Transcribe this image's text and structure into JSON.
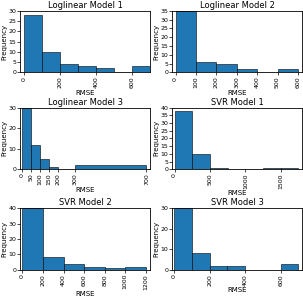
{
  "chart_data": [
    {
      "type": "histogram",
      "title": "Loglinear Model 1",
      "xlabel": "RMSE",
      "ylabel": "Frequency",
      "bins": [
        0,
        100,
        200,
        300,
        400,
        500,
        600,
        700
      ],
      "counts": [
        28,
        10,
        4,
        3,
        2,
        0,
        3
      ],
      "xlim": [
        -20,
        700
      ],
      "ylim": [
        0,
        30
      ],
      "xticks": [
        0,
        200,
        400,
        600
      ],
      "yticks": [
        0,
        5,
        10,
        15,
        20,
        25,
        30
      ]
    },
    {
      "type": "histogram",
      "title": "Loglinear Model 2",
      "xlabel": "RMSE",
      "ylabel": "Frequency",
      "bins": [
        0,
        100,
        200,
        300,
        400,
        500,
        600
      ],
      "counts": [
        35,
        6,
        5,
        2,
        0,
        2
      ],
      "xlim": [
        -15,
        620
      ],
      "ylim": [
        0,
        35
      ],
      "xticks": [
        0,
        100,
        200,
        300,
        400,
        500,
        600
      ],
      "yticks": [
        0,
        5,
        10,
        15,
        20,
        25,
        30,
        35
      ]
    },
    {
      "type": "histogram",
      "title": "Loglinear Model 3",
      "xlabel": "RMSE",
      "ylabel": "Frequency",
      "bins": [
        0,
        50,
        100,
        150,
        200,
        300,
        700
      ],
      "counts": [
        30,
        12,
        5,
        1,
        0,
        2
      ],
      "xlim": [
        -10,
        720
      ],
      "ylim": [
        0,
        30
      ],
      "xticks": [
        0,
        50,
        100,
        150,
        200,
        300,
        700
      ],
      "yticks": [
        0,
        10,
        20,
        30
      ]
    },
    {
      "type": "histogram",
      "title": "SVR Model 1",
      "xlabel": "RMSE",
      "ylabel": "Frequency",
      "bins": [
        0,
        250,
        500,
        750,
        1000,
        1250,
        1500,
        1750
      ],
      "counts": [
        38,
        10,
        1,
        0,
        0,
        1,
        1
      ],
      "xlim": [
        -30,
        1800
      ],
      "ylim": [
        0,
        40
      ],
      "xticks": [
        0,
        500,
        1000,
        1500
      ],
      "yticks": [
        0,
        5,
        10,
        15,
        20,
        25,
        30,
        35,
        40
      ]
    },
    {
      "type": "histogram",
      "title": "SVR Model 2",
      "xlabel": "RMSE",
      "ylabel": "Frequency",
      "bins": [
        0,
        200,
        400,
        600,
        800,
        1000,
        1200
      ],
      "counts": [
        40,
        8,
        4,
        2,
        1,
        2
      ],
      "xlim": [
        -20,
        1240
      ],
      "ylim": [
        0,
        40
      ],
      "xticks": [
        0,
        200,
        400,
        600,
        800,
        1000,
        1200
      ],
      "yticks": [
        0,
        10,
        20,
        30,
        40
      ]
    },
    {
      "type": "histogram",
      "title": "SVR Model 3",
      "xlabel": "RMSE",
      "ylabel": "Frequency",
      "bins": [
        0,
        100,
        200,
        300,
        400,
        500,
        600,
        700
      ],
      "counts": [
        30,
        8,
        2,
        2,
        0,
        0,
        3
      ],
      "xlim": [
        -10,
        720
      ],
      "ylim": [
        0,
        30
      ],
      "xticks": [
        0,
        200,
        400,
        600
      ],
      "yticks": [
        0,
        10,
        20,
        30
      ]
    }
  ]
}
